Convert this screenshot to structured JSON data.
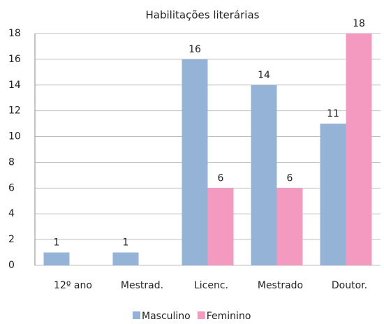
{
  "chart_data": {
    "type": "bar",
    "title": "Habilitações literárias",
    "categories": [
      "12º ano",
      "Mestrad.",
      "Licenc.",
      "Mestrado",
      "Doutor."
    ],
    "series": [
      {
        "name": "Masculino",
        "color": "#95b3d7",
        "values": [
          1,
          1,
          16,
          14,
          11
        ]
      },
      {
        "name": "Feminino",
        "color": "#f49ac1",
        "values": [
          null,
          null,
          6,
          6,
          18
        ]
      }
    ],
    "ylim": [
      0,
      18
    ],
    "yticks": [
      0,
      2,
      4,
      6,
      8,
      10,
      12,
      14,
      16,
      18
    ],
    "grid": true,
    "legend": "bottom"
  }
}
